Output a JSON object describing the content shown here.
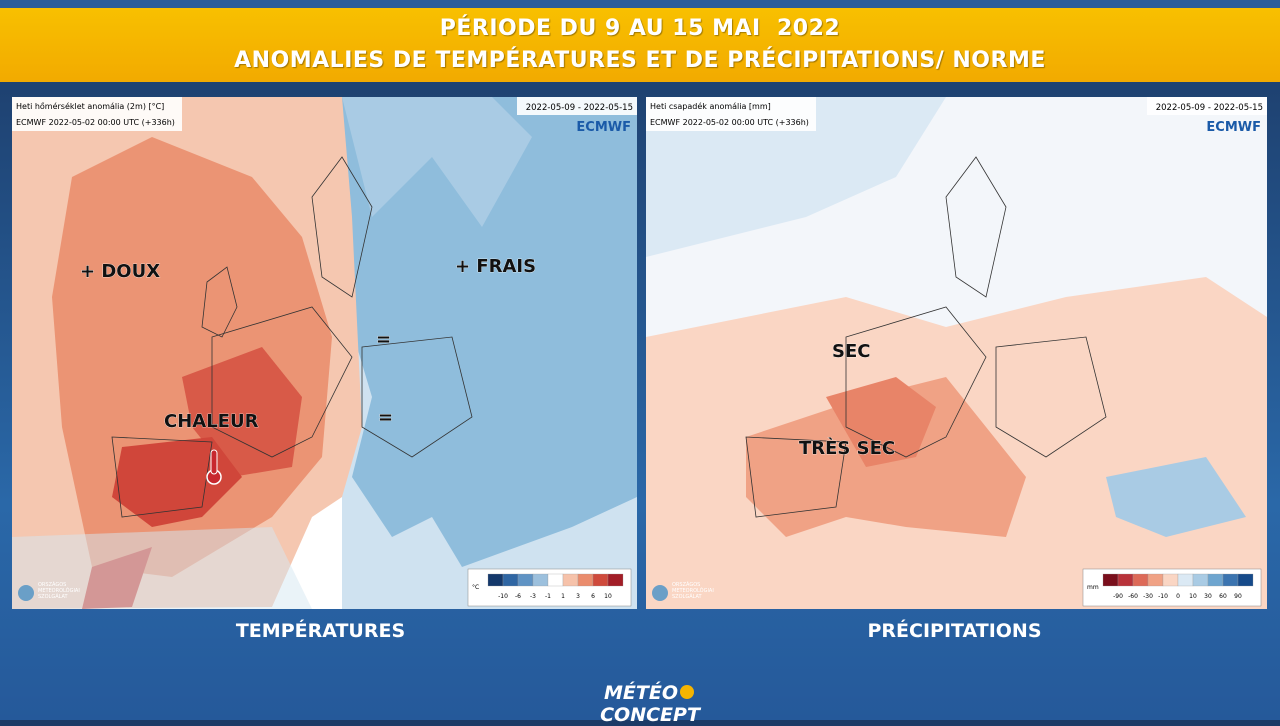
{
  "header": {
    "line1": "PÉRIODE DU 9 AU 15 MAI  2022",
    "line2": "ANOMALIES DE TEMPÉRATURES ET DE PRÉCIPITATIONS/ NORME"
  },
  "panels": [
    {
      "title": "Heti hőmérséklet anomália (2m) [°C]",
      "run": "ECMWF 2022-05-02 00:00 UTC (+336h)",
      "period": "2022-05-09 - 2022-05-15",
      "brand": "ECMWF",
      "agency": [
        "ORSZÁGOS",
        "METEOROLÓGIAI",
        "SZOLGÁLAT"
      ],
      "labels": [
        "+ DOUX",
        "+ FRAIS",
        "=",
        "=",
        "CHALEUR"
      ],
      "legend": {
        "unit": "°C",
        "ticks": [
          "-10",
          "-6",
          "-3",
          "-1",
          "1",
          "3",
          "6",
          "10"
        ],
        "colors": [
          "#14386b",
          "#2f66a3",
          "#5f93c4",
          "#9cc0dd",
          "#ffffff",
          "#f6c2aa",
          "#ea8c6d",
          "#cf4a3c",
          "#a21d27"
        ]
      },
      "caption": "TEMPÉRATURES"
    },
    {
      "title": "Heti csapadék anomália [mm]",
      "run": "ECMWF 2022-05-02 00:00 UTC (+336h)",
      "period": "2022-05-09 - 2022-05-15",
      "brand": "ECMWF",
      "agency": [
        "ORSZÁGOS",
        "METEOROLÓGIAI",
        "SZOLGÁLAT"
      ],
      "labels": [
        "SEC",
        "TRÈS SEC"
      ],
      "legend": {
        "unit": "mm",
        "ticks": [
          "-90",
          "-60",
          "-30",
          "-10",
          "0",
          "10",
          "30",
          "60",
          "90"
        ],
        "colors": [
          "#7a0f1c",
          "#b8323a",
          "#dd6a58",
          "#f0a285",
          "#fad6c4",
          "#dbe9f4",
          "#a9cbe4",
          "#6ea5cf",
          "#3b74b0",
          "#164a8a"
        ]
      },
      "caption": "PRÉCIPITATIONS"
    }
  ],
  "footer": {
    "logo_left": "MÉTÉO",
    "logo_right": "CONCEPT"
  }
}
